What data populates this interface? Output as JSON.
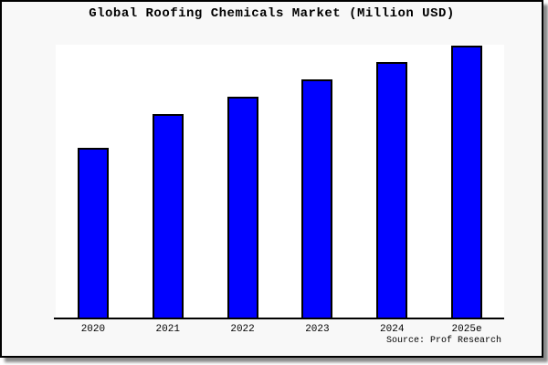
{
  "header": {
    "title": "Global Roofing Chemicals Market (Million USD)"
  },
  "footer": {
    "source": "Source: Prof Research"
  },
  "colors": {
    "bar_fill": "#0000ff",
    "bar_edge": "#000000",
    "figure_background": "#f8f8f8",
    "plot_background": "#ffffff",
    "frame_border": "#000000",
    "shadow": "#8a8a8a",
    "text": "#000000"
  },
  "chart_data": {
    "type": "bar",
    "title": "Global Roofing Chemicals Market (Million USD)",
    "categories": [
      "2020",
      "2021",
      "2022",
      "2023",
      "2024",
      "2025e"
    ],
    "values": [
      188,
      225,
      244,
      263,
      282,
      300
    ],
    "values_note": "y-axis is unlabeled; values are relative units estimated from bar heights (no numeric scale shown in the chart)",
    "xlabel": "",
    "ylabel": "",
    "ylim": [
      0,
      301
    ],
    "grid": false,
    "legend": false,
    "y_axis_visible": false,
    "x_axis_visible": true,
    "annotation": "Source: Prof Research"
  }
}
